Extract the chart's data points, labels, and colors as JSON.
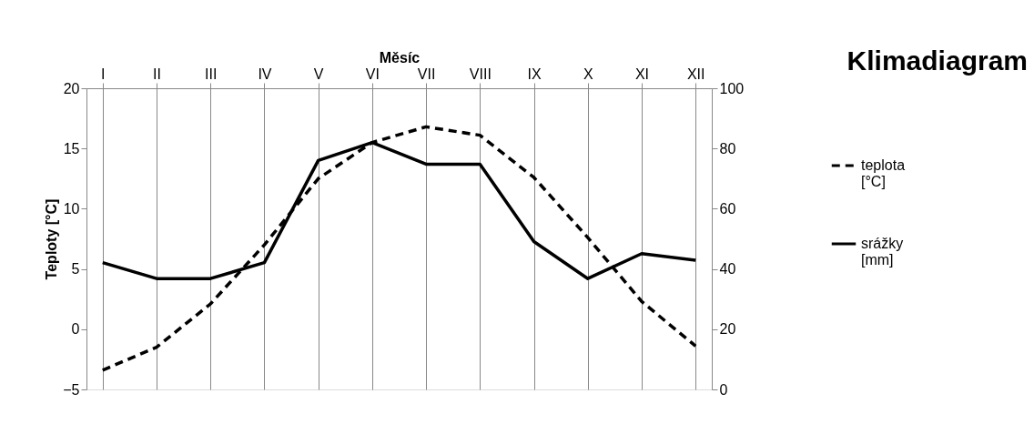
{
  "chart_data": {
    "type": "line",
    "title": "Klimadiagram",
    "xlabel": "Měsíc",
    "ylabel": "Teploty [°C]",
    "categories": [
      "I",
      "II",
      "III",
      "IV",
      "V",
      "VI",
      "VII",
      "VIII",
      "IX",
      "X",
      "XI",
      "XII"
    ],
    "series": [
      {
        "name": "teplota [°C]",
        "color": "#000000",
        "line_style": "dashed",
        "values": [
          -3.4,
          -1.5,
          2.1,
          7.0,
          12.5,
          15.5,
          16.8,
          16.1,
          12.6,
          7.6,
          2.3,
          -1.4
        ]
      },
      {
        "name": "srážky [mm]",
        "color": "#000000",
        "line_style": "solid",
        "axis": "y2",
        "values": [
          42.1,
          36.8,
          36.8,
          42.1,
          76,
          82,
          74.8,
          74.8,
          49.1,
          36.8,
          45.1,
          42.9
        ]
      }
    ],
    "ylim": [
      -5,
      20
    ],
    "yticks": [
      -5,
      0,
      5,
      10,
      15,
      20
    ],
    "y2lim": [
      0,
      100
    ],
    "y2ticks": [
      0,
      20,
      40,
      60,
      80,
      100
    ],
    "grid": "x",
    "legend": "right"
  }
}
